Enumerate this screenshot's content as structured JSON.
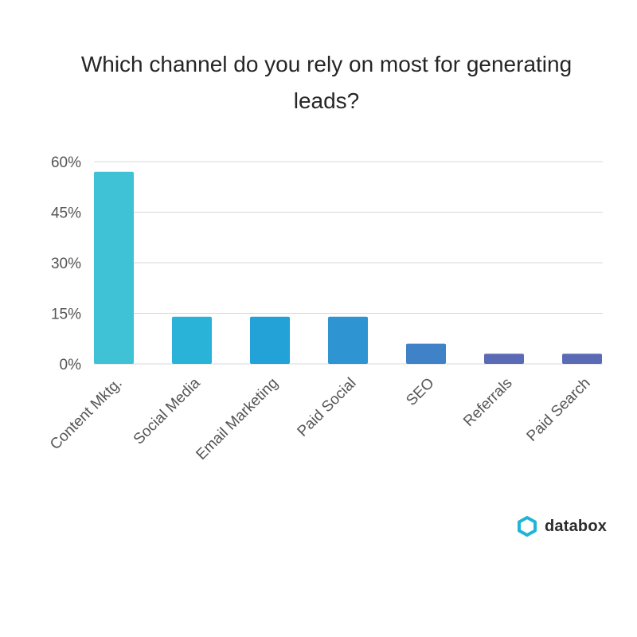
{
  "chart_data": {
    "type": "bar",
    "title": "Which channel do you rely on most for generating leads?",
    "xlabel": "",
    "ylabel": "",
    "categories": [
      "Content Mktg.",
      "Social Media",
      "Email Marketing",
      "Paid Social",
      "SEO",
      "Referrals",
      "Paid Search"
    ],
    "values": [
      57,
      14,
      14,
      14,
      6,
      3,
      3
    ],
    "ylim": [
      0,
      60
    ],
    "yticks": [
      0,
      15,
      30,
      45,
      60
    ],
    "ytick_labels": [
      "0%",
      "15%",
      "30%",
      "45%",
      "60%"
    ],
    "grid": true,
    "legend": false,
    "bar_colors": [
      "#3fc1d6",
      "#2ab3d9",
      "#22a2d6",
      "#2f94d2",
      "#3f82c8",
      "#5b6ab5",
      "#5b6ab5"
    ]
  },
  "brand": {
    "name": "databox",
    "color": "#1fb5d6",
    "icon": "databox-logo-icon"
  }
}
